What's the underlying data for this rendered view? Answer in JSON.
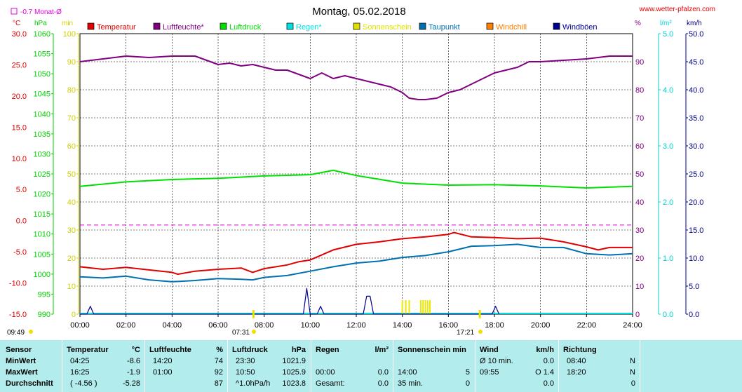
{
  "header": {
    "title": "Montag, 05.02.2018",
    "website": "www.wetter-pfalzen.com",
    "monthly_avg_label": "-0.7 Monat-Ø"
  },
  "axis_units": {
    "celsius": "°C",
    "hpa": "hPa",
    "min": "min",
    "percent": "%",
    "rain": "l/m²",
    "wind": "km/h"
  },
  "legend": [
    {
      "label": "Temperatur",
      "color": "#e00000"
    },
    {
      "label": "Luftfeuchte*",
      "color": "#800080"
    },
    {
      "label": "Luftdruck",
      "color": "#00e000"
    },
    {
      "label": "Regen*",
      "color": "#00e0e0"
    },
    {
      "label": "Sonnenschein",
      "color": "#e0e000"
    },
    {
      "label": "Taupunkt",
      "color": "#0070b0"
    },
    {
      "label": "Windchill",
      "color": "#ff8000"
    },
    {
      "label": "Windböen",
      "color": "#000090"
    }
  ],
  "markers": {
    "sunrise": "07:31",
    "sunset": "17:21",
    "left_time": "09:49"
  },
  "chart_data": {
    "type": "line",
    "x_ticks": [
      "00:00",
      "02:00",
      "04:00",
      "06:00",
      "08:00",
      "10:00",
      "12:00",
      "14:00",
      "16:00",
      "18:00",
      "20:00",
      "22:00",
      "24:00"
    ],
    "xlim_hours": [
      0,
      24
    ],
    "axes": {
      "celsius": {
        "ticks": [
          "30.0",
          "25.0",
          "20.0",
          "15.0",
          "10.0",
          "5.0",
          "0.0",
          "-5.0",
          "-10.0",
          "-15.0"
        ],
        "range": [
          -15,
          30
        ]
      },
      "hpa": {
        "ticks": [
          "1060",
          "1055",
          "1050",
          "1045",
          "1040",
          "1035",
          "1030",
          "1025",
          "1020",
          "1015",
          "1010",
          "1005",
          "1000",
          "995",
          "990"
        ],
        "range": [
          990,
          1060
        ]
      },
      "min": {
        "ticks": [
          "100",
          "90",
          "80",
          "70",
          "60",
          "50",
          "40",
          "30",
          "20",
          "10",
          "0"
        ],
        "range": [
          0,
          100
        ]
      },
      "percent": {
        "ticks": [
          "90",
          "80",
          "70",
          "60",
          "50",
          "40",
          "30",
          "20",
          "10",
          "0"
        ],
        "range": [
          0,
          100
        ]
      },
      "rain": {
        "ticks": [
          "5.0",
          "4.0",
          "3.0",
          "2.0",
          "1.0",
          "0.0"
        ],
        "range": [
          0,
          5
        ]
      },
      "wind": {
        "ticks": [
          "50.0",
          "45.0",
          "40.0",
          "35.0",
          "30.0",
          "25.0",
          "20.0",
          "15.0",
          "10.0",
          "5.0",
          "0.0"
        ],
        "range": [
          0,
          50
        ]
      }
    },
    "monthly_avg_temperature": -0.7,
    "series": [
      {
        "name": "Luftfeuchte*",
        "color": "#800080",
        "axis": "percent",
        "x": [
          0,
          1,
          2,
          3,
          4,
          5,
          6,
          6.5,
          7,
          7.5,
          8,
          8.5,
          9,
          9.5,
          10,
          10.5,
          11,
          11.5,
          12,
          12.5,
          13,
          13.5,
          14,
          14.3,
          14.7,
          15,
          15.5,
          16,
          16.5,
          17,
          17.5,
          18,
          18.5,
          19,
          19.5,
          20,
          21,
          22,
          23,
          24
        ],
        "y": [
          90,
          91,
          92,
          91.5,
          92,
          92,
          89,
          89.5,
          88.5,
          89,
          88,
          87,
          87,
          85.5,
          84,
          86,
          84,
          85,
          84,
          83,
          82,
          81,
          79,
          77,
          76.5,
          76.5,
          77,
          79,
          80,
          82,
          84,
          86,
          87,
          88,
          90,
          90,
          90.5,
          91,
          92,
          92
        ]
      },
      {
        "name": "Luftdruck",
        "color": "#00e000",
        "axis": "hpa",
        "x": [
          0,
          2,
          4,
          6,
          8,
          10,
          11,
          12,
          14,
          16,
          18,
          20,
          22,
          24
        ],
        "y": [
          1021.9,
          1023,
          1023.6,
          1023.9,
          1024.5,
          1024.8,
          1025.9,
          1024.6,
          1022.7,
          1022.2,
          1022.3,
          1022.0,
          1021.5,
          1021.9
        ]
      },
      {
        "name": "Temperatur",
        "color": "#e00000",
        "axis": "celsius",
        "x": [
          0,
          1,
          2,
          3,
          4,
          4.25,
          5,
          6,
          7,
          7.5,
          8,
          9,
          9.5,
          10,
          11,
          12,
          13,
          14,
          15,
          16,
          16.25,
          17,
          18,
          19,
          20,
          21,
          22,
          22.5,
          23,
          24
        ],
        "y": [
          -7.4,
          -7.8,
          -7.5,
          -7.9,
          -8.3,
          -8.6,
          -8.1,
          -7.8,
          -7.6,
          -8.3,
          -7.7,
          -7.1,
          -6.6,
          -6.3,
          -4.7,
          -3.8,
          -3.4,
          -2.9,
          -2.6,
          -2.2,
          -1.9,
          -2.6,
          -2.7,
          -2.9,
          -2.8,
          -3.4,
          -4.2,
          -4.7,
          -4.3,
          -4.3
        ]
      },
      {
        "name": "Taupunkt",
        "color": "#0070b0",
        "axis": "celsius",
        "x": [
          0,
          1,
          2,
          3,
          4,
          5,
          6,
          7,
          7.5,
          8,
          9,
          10,
          11,
          12,
          13,
          14,
          15,
          16,
          17,
          18,
          19,
          20,
          21,
          22,
          23,
          24
        ],
        "y": [
          -9.0,
          -9.2,
          -8.9,
          -9.5,
          -9.8,
          -9.6,
          -9.3,
          -9.4,
          -9.5,
          -9.1,
          -8.8,
          -8.1,
          -7.4,
          -6.8,
          -6.5,
          -5.9,
          -5.6,
          -5.0,
          -4.1,
          -4.0,
          -3.8,
          -4.3,
          -4.3,
          -5.3,
          -5.5,
          -5.3
        ]
      },
      {
        "name": "Windböen",
        "color": "#000090",
        "axis": "wind",
        "x": [
          0,
          0.3,
          0.45,
          0.6,
          9.7,
          9.85,
          10,
          10.3,
          10.45,
          10.6,
          12.3,
          12.45,
          12.6,
          12.75,
          17.9,
          18.05,
          18.2
        ],
        "y": [
          0,
          0,
          1.4,
          0,
          0,
          4.6,
          0,
          0,
          1.4,
          0,
          0,
          3.2,
          3.2,
          0,
          0,
          1.4,
          0
        ]
      }
    ],
    "sunshine_bars_hours": [
      14.0,
      14.15,
      14.3,
      14.8,
      14.9,
      15.0,
      15.1,
      15.2
    ]
  },
  "stats": {
    "headers": {
      "sensor": "Sensor",
      "temp": "Temperatur",
      "temp_unit": "°C",
      "hum": "Luftfeuchte",
      "hum_unit": "%",
      "press": "Luftdruck",
      "press_unit": "hPa",
      "rain": "Regen",
      "rain_unit": "l/m²",
      "sun": "Sonnenschein min",
      "wind": "Wind",
      "wind_unit": "km/h",
      "dir": "Richtung"
    },
    "rows": [
      {
        "label": "MinWert",
        "temp_time": "04:25",
        "temp_val": "-8.6",
        "hum_time": "14:20",
        "hum_val": "74",
        "press_time": "23:30",
        "press_val": "1021.9",
        "rain_time": "",
        "rain_val": "",
        "sun_time": "",
        "sun_val": "",
        "wind_time": "Ø 10 min.",
        "wind_val": "0.0",
        "dir_time": "08:40",
        "dir_val": "N"
      },
      {
        "label": "MaxWert",
        "temp_time": "16:25",
        "temp_val": "-1.9",
        "hum_time": "01:00",
        "hum_val": "92",
        "press_time": "10:50",
        "press_val": "1025.9",
        "rain_time": "00:00",
        "rain_val": "0.0",
        "sun_time": "14:00",
        "sun_val": "5",
        "wind_time": "09:55",
        "wind_val": "O 1.4",
        "dir_time": "18:20",
        "dir_val": "N"
      },
      {
        "label": "Durchschnitt",
        "temp_time": "( -4.56 )",
        "temp_val": "-5.28",
        "hum_time": "",
        "hum_val": "87",
        "press_time": "^1.0hPa/h",
        "press_val": "1023.8",
        "rain_time": "Gesamt:",
        "rain_val": "0.0",
        "sun_time": "35 min.",
        "sun_val": "0",
        "wind_time": "",
        "wind_val": "0.0",
        "dir_time": "",
        "dir_val": "0"
      }
    ]
  }
}
